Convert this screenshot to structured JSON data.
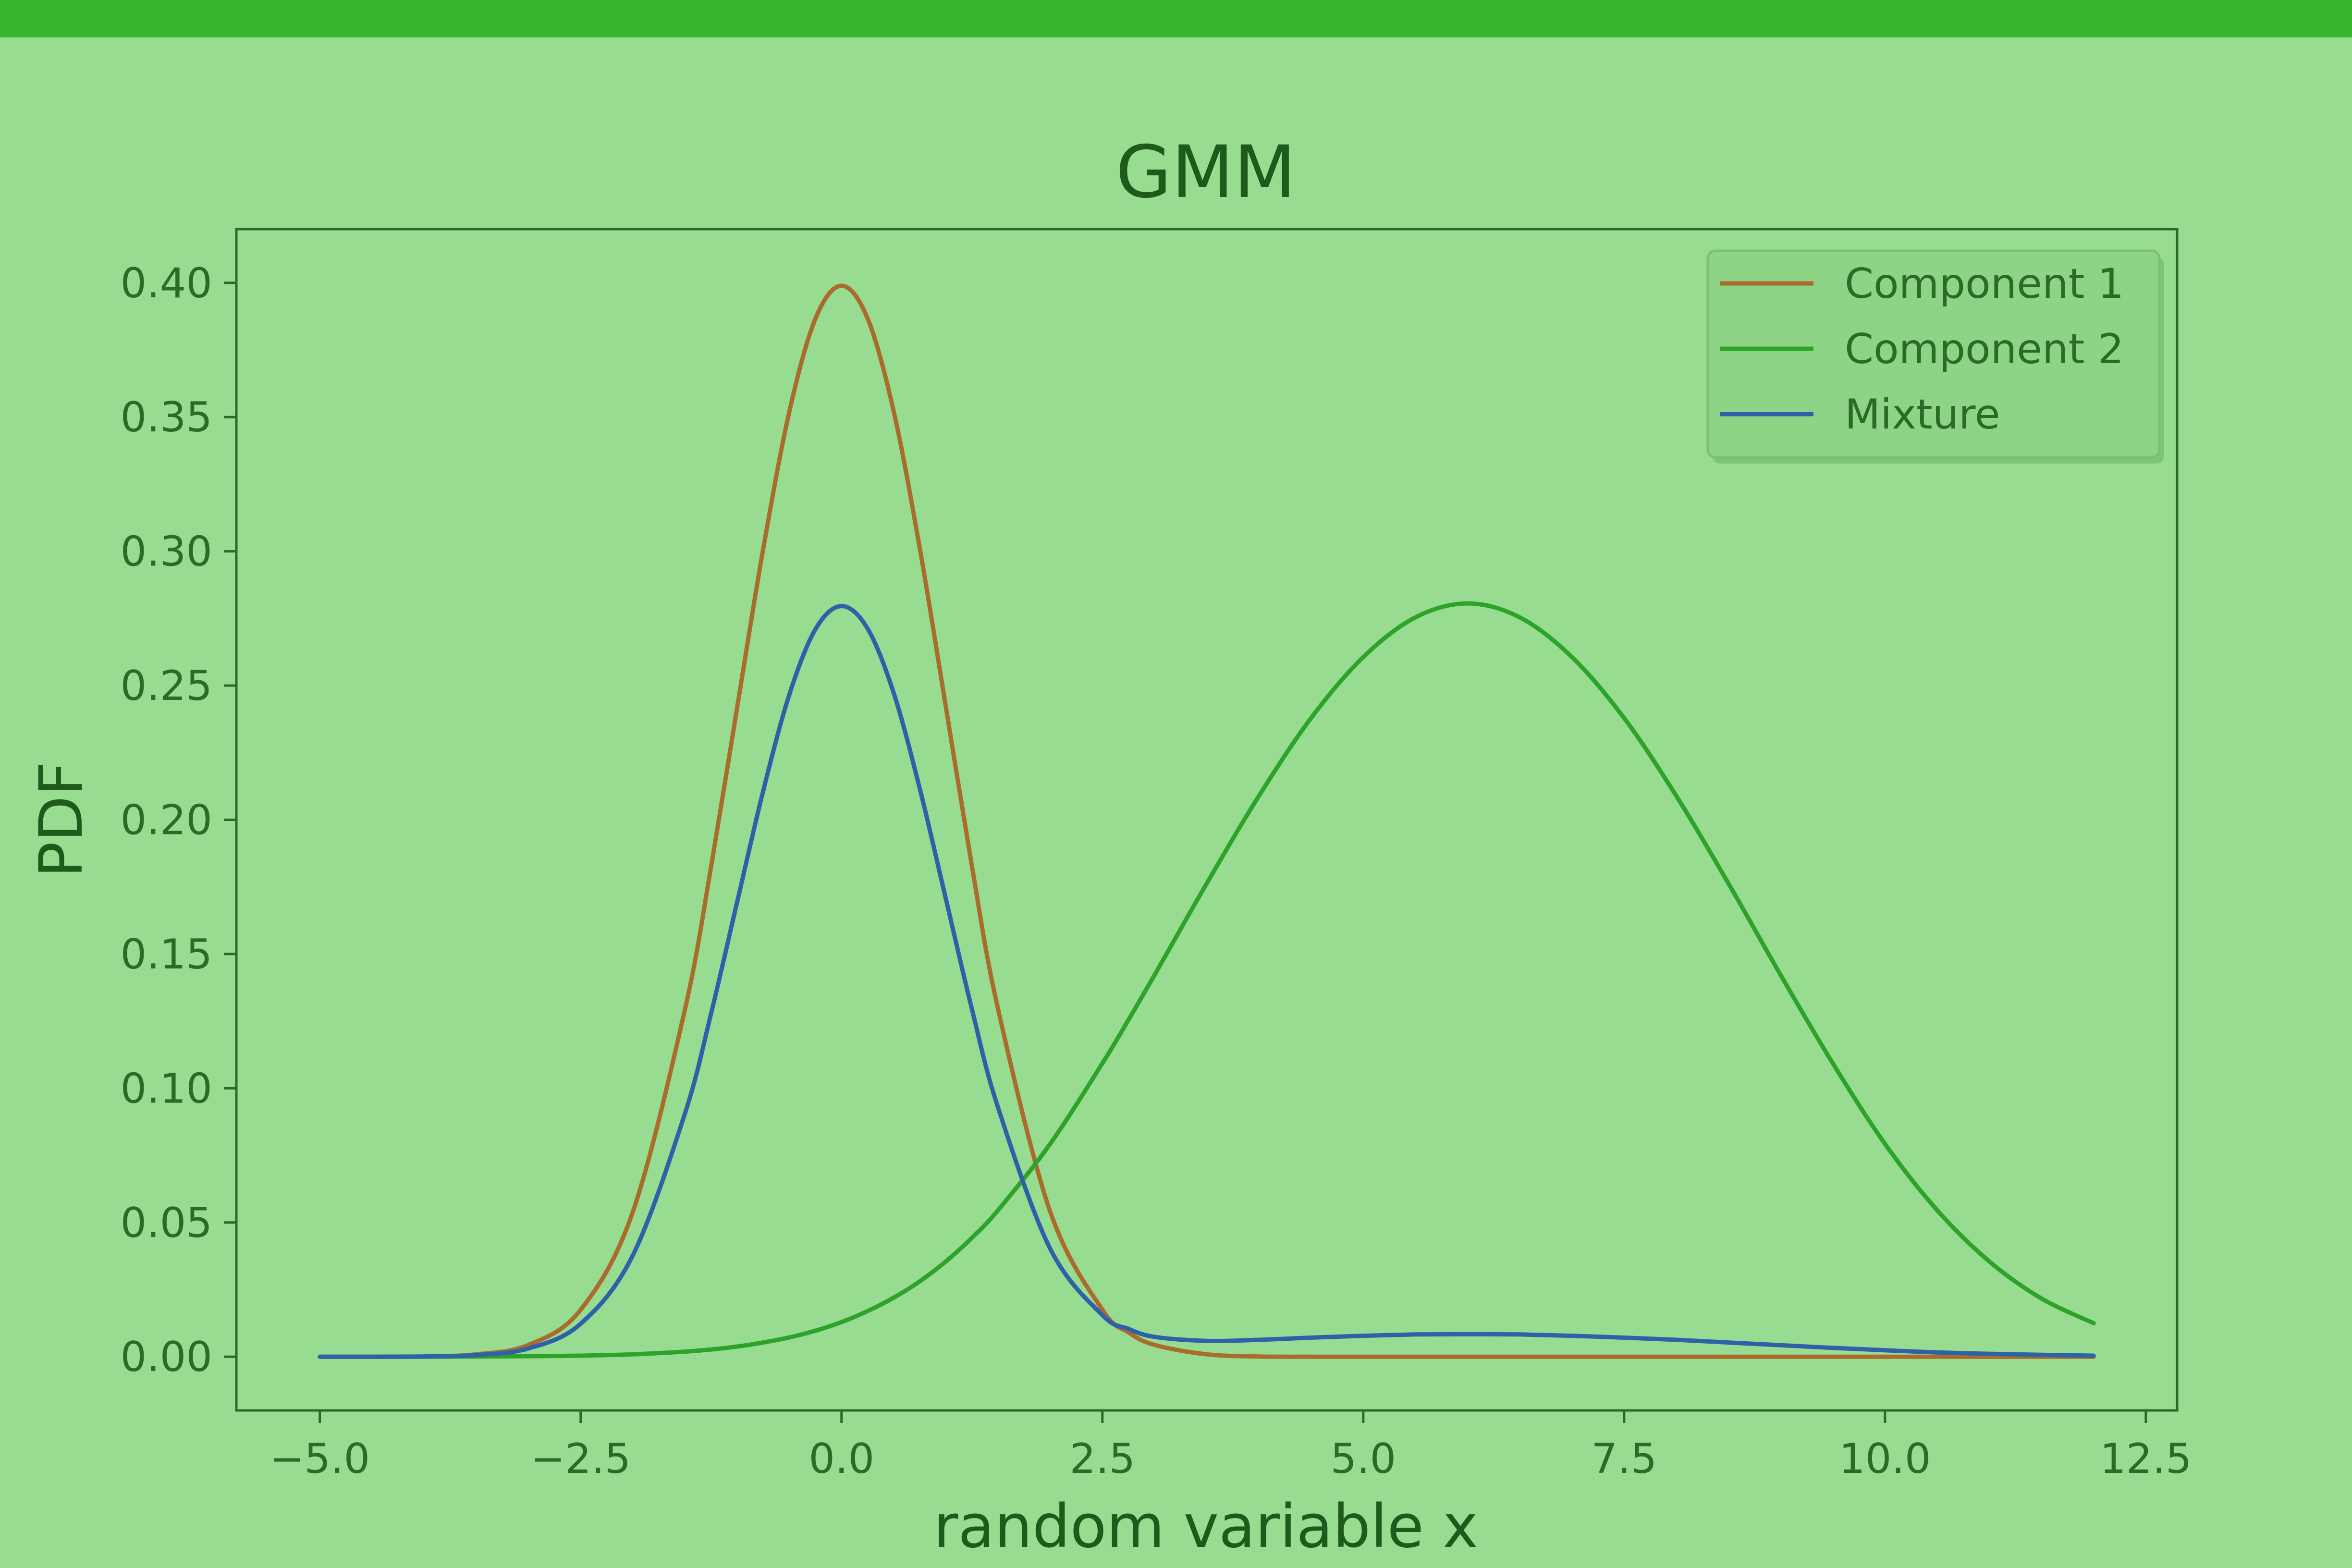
{
  "chart_data": {
    "type": "line",
    "title": "GMM",
    "xlabel": "random variable x",
    "ylabel": "PDF",
    "xlim": [
      -5.8,
      12.8
    ],
    "ylim": [
      -0.02,
      0.42
    ],
    "xticks": [
      -5.0,
      -2.5,
      0.0,
      2.5,
      5.0,
      7.5,
      10.0,
      12.5
    ],
    "xtick_labels": [
      "−5.0",
      "−2.5",
      "0.0",
      "2.5",
      "5.0",
      "7.5",
      "10.0",
      "12.5"
    ],
    "yticks": [
      0.0,
      0.05,
      0.1,
      0.15,
      0.2,
      0.25,
      0.3,
      0.35,
      0.4
    ],
    "ytick_labels": [
      "0.00",
      "0.05",
      "0.10",
      "0.15",
      "0.20",
      "0.25",
      "0.30",
      "0.35",
      "0.40"
    ],
    "legend_position": "top-right",
    "grid": false,
    "x": [
      -5.0,
      -4.5,
      -4.0,
      -3.5,
      -3.0,
      -2.5,
      -2.0,
      -1.5,
      -1.25,
      -1.0,
      -0.75,
      -0.5,
      -0.25,
      0.0,
      0.25,
      0.5,
      0.75,
      1.0,
      1.25,
      1.5,
      2.0,
      2.5,
      2.75,
      3.0,
      3.5,
      4.0,
      4.5,
      5.0,
      5.5,
      6.0,
      6.5,
      7.0,
      7.5,
      8.0,
      8.5,
      9.0,
      9.5,
      10.0,
      10.5,
      11.0,
      11.5,
      12.0
    ],
    "series": [
      {
        "name": "Component 1",
        "color": "#a96c2c",
        "values": [
          0.0,
          0.0,
          0.0001,
          0.0009,
          0.0044,
          0.0175,
          0.054,
          0.1295,
          0.1826,
          0.242,
          0.3011,
          0.3521,
          0.3867,
          0.3989,
          0.3867,
          0.3521,
          0.3011,
          0.242,
          0.1826,
          0.1295,
          0.054,
          0.0175,
          0.0091,
          0.0044,
          0.0009,
          0.0001,
          0.0,
          0.0,
          0.0,
          0.0,
          0.0,
          0.0,
          0.0,
          0.0,
          0.0,
          0.0,
          0.0,
          0.0,
          0.0,
          0.0,
          0.0,
          0.0
        ]
      },
      {
        "name": "Component 2",
        "color": "#2ea32a",
        "values": [
          0.0,
          0.0,
          0.0,
          0.0001,
          0.0002,
          0.0004,
          0.0009,
          0.0019,
          0.0027,
          0.0038,
          0.0053,
          0.0072,
          0.0097,
          0.0129,
          0.017,
          0.022,
          0.0281,
          0.0355,
          0.0443,
          0.0546,
          0.0793,
          0.1093,
          0.1255,
          0.1422,
          0.1763,
          0.2089,
          0.2379,
          0.2606,
          0.2754,
          0.2806,
          0.2754,
          0.2606,
          0.2379,
          0.2089,
          0.1763,
          0.1422,
          0.1093,
          0.0793,
          0.0546,
          0.0355,
          0.0217,
          0.0125
        ]
      },
      {
        "name": "Mixture",
        "color": "#2e62a8",
        "values": [
          0.0,
          0.0,
          0.0001,
          0.0006,
          0.0031,
          0.0123,
          0.0378,
          0.0907,
          0.1279,
          0.1695,
          0.2109,
          0.2467,
          0.271,
          0.2796,
          0.2712,
          0.2472,
          0.2116,
          0.1705,
          0.1294,
          0.0928,
          0.0402,
          0.0155,
          0.0104,
          0.0074,
          0.0059,
          0.0063,
          0.0071,
          0.0078,
          0.0083,
          0.0084,
          0.0083,
          0.0078,
          0.0071,
          0.0063,
          0.0053,
          0.0043,
          0.0033,
          0.0024,
          0.0016,
          0.0011,
          0.0007,
          0.0004
        ]
      }
    ]
  }
}
